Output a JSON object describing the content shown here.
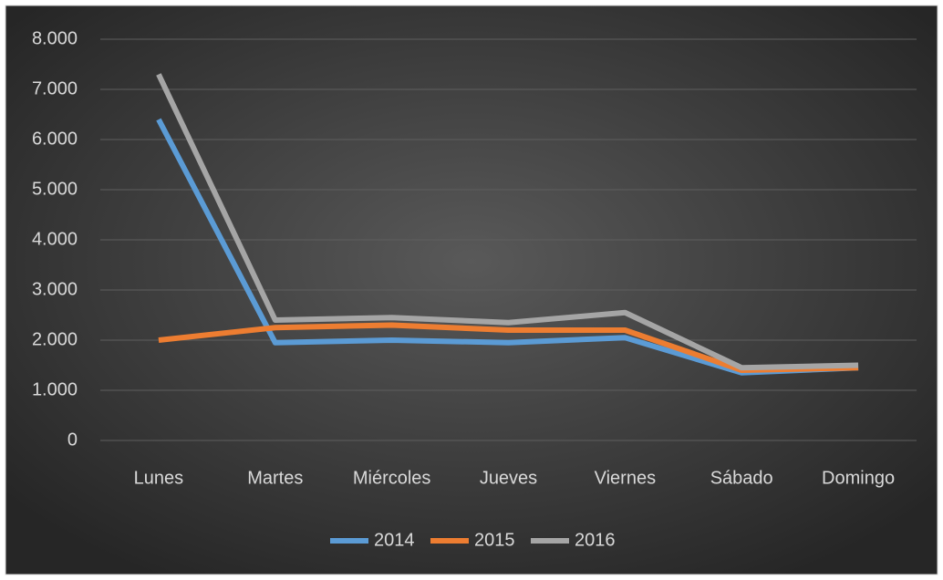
{
  "chart_data": {
    "type": "line",
    "categories": [
      "Lunes",
      "Martes",
      "Miércoles",
      "Jueves",
      "Viernes",
      "Sábado",
      "Domingo"
    ],
    "series": [
      {
        "name": "2014",
        "color": "#5b9bd5",
        "values": [
          6400,
          1950,
          2000,
          1950,
          2050,
          1350,
          1450
        ]
      },
      {
        "name": "2015",
        "color": "#ed7d31",
        "values": [
          2000,
          2250,
          2300,
          2200,
          2200,
          1400,
          1450
        ]
      },
      {
        "name": "2016",
        "color": "#a5a5a5",
        "values": [
          7300,
          2400,
          2450,
          2350,
          2550,
          1450,
          1500
        ]
      }
    ],
    "ylim": [
      0,
      8000
    ],
    "yticks": [
      0,
      {
        "value": 1000,
        "label": "1.000"
      },
      {
        "value": 2000,
        "label": "2.000"
      },
      {
        "value": 3000,
        "label": "3.000"
      },
      {
        "value": 4000,
        "label": "4.000"
      },
      {
        "value": 5000,
        "label": "5.000"
      },
      {
        "value": 6000,
        "label": "6.000"
      },
      {
        "value": 7000,
        "label": "7.000"
      },
      {
        "value": 8000,
        "label": "8.000"
      }
    ],
    "grid": true,
    "legend": "bottom"
  }
}
